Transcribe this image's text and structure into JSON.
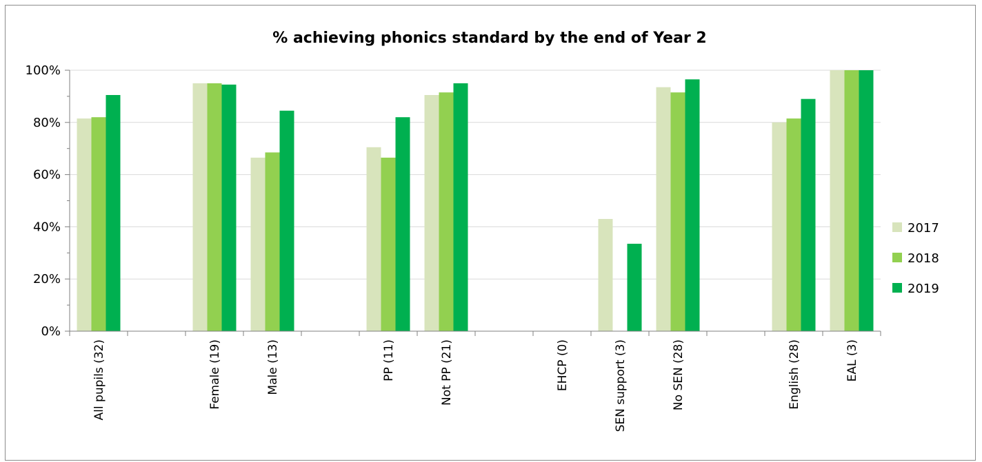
{
  "chart_data": {
    "type": "bar",
    "title": "% achieving phonics standard by the end of Year 2",
    "xlabel": "",
    "ylabel": "",
    "ylim": [
      0,
      100
    ],
    "y_ticks": [
      "0%",
      "20%",
      "40%",
      "60%",
      "80%",
      "100%"
    ],
    "legend_position": "right",
    "grid": true,
    "categories": [
      "All pupils (32)",
      "",
      "Female (19)",
      "Male (13)",
      "",
      "PP (11)",
      "Not PP (21)",
      "",
      "EHCP (0)",
      "SEN support (3)",
      "No SEN (28)",
      "",
      "English (28)",
      "EAL (3)"
    ],
    "series": [
      {
        "name": "2017",
        "color": "#d8e4bc",
        "values": [
          81.5,
          null,
          95,
          66.5,
          null,
          70.5,
          90.5,
          null,
          null,
          43,
          93.5,
          null,
          80,
          100
        ]
      },
      {
        "name": "2018",
        "color": "#92d050",
        "values": [
          82,
          null,
          95,
          68.5,
          null,
          66.5,
          91.5,
          null,
          null,
          null,
          91.5,
          null,
          81.5,
          100
        ]
      },
      {
        "name": "2019",
        "color": "#00b050",
        "values": [
          90.5,
          null,
          94.5,
          84.5,
          null,
          82,
          95,
          null,
          null,
          33.5,
          96.5,
          null,
          89,
          100
        ]
      }
    ]
  }
}
